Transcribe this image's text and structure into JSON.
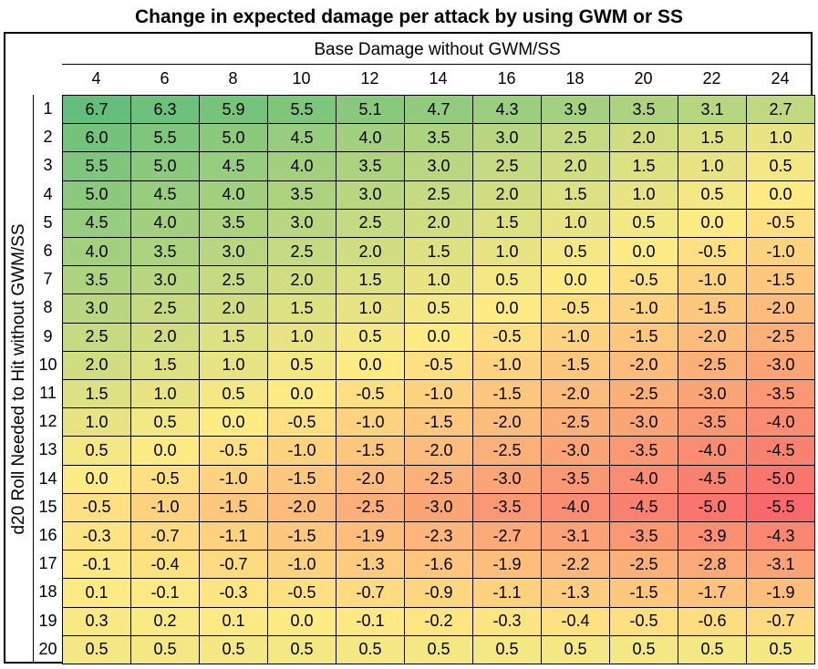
{
  "chart_data": {
    "type": "heatmap",
    "title": "Change in expected damage per attack by using GWM or SS",
    "xlabel": "Base Damage without GWM/SS",
    "ylabel": "d20 Roll Needed to Hit without GWM/SS",
    "x": [
      "4",
      "6",
      "8",
      "10",
      "12",
      "14",
      "16",
      "18",
      "20",
      "22",
      "24"
    ],
    "y": [
      "1",
      "2",
      "3",
      "4",
      "5",
      "6",
      "7",
      "8",
      "9",
      "10",
      "11",
      "12",
      "13",
      "14",
      "15",
      "16",
      "17",
      "18",
      "19",
      "20"
    ],
    "values": [
      [
        "6.7",
        "6.3",
        "5.9",
        "5.5",
        "5.1",
        "4.7",
        "4.3",
        "3.9",
        "3.5",
        "3.1",
        "2.7"
      ],
      [
        "6.0",
        "5.5",
        "5.0",
        "4.5",
        "4.0",
        "3.5",
        "3.0",
        "2.5",
        "2.0",
        "1.5",
        "1.0"
      ],
      [
        "5.5",
        "5.0",
        "4.5",
        "4.0",
        "3.5",
        "3.0",
        "2.5",
        "2.0",
        "1.5",
        "1.0",
        "0.5"
      ],
      [
        "5.0",
        "4.5",
        "4.0",
        "3.5",
        "3.0",
        "2.5",
        "2.0",
        "1.5",
        "1.0",
        "0.5",
        "0.0"
      ],
      [
        "4.5",
        "4.0",
        "3.5",
        "3.0",
        "2.5",
        "2.0",
        "1.5",
        "1.0",
        "0.5",
        "0.0",
        "-0.5"
      ],
      [
        "4.0",
        "3.5",
        "3.0",
        "2.5",
        "2.0",
        "1.5",
        "1.0",
        "0.5",
        "0.0",
        "-0.5",
        "-1.0"
      ],
      [
        "3.5",
        "3.0",
        "2.5",
        "2.0",
        "1.5",
        "1.0",
        "0.5",
        "0.0",
        "-0.5",
        "-1.0",
        "-1.5"
      ],
      [
        "3.0",
        "2.5",
        "2.0",
        "1.5",
        "1.0",
        "0.5",
        "0.0",
        "-0.5",
        "-1.0",
        "-1.5",
        "-2.0"
      ],
      [
        "2.5",
        "2.0",
        "1.5",
        "1.0",
        "0.5",
        "0.0",
        "-0.5",
        "-1.0",
        "-1.5",
        "-2.0",
        "-2.5"
      ],
      [
        "2.0",
        "1.5",
        "1.0",
        "0.5",
        "0.0",
        "-0.5",
        "-1.0",
        "-1.5",
        "-2.0",
        "-2.5",
        "-3.0"
      ],
      [
        "1.5",
        "1.0",
        "0.5",
        "0.0",
        "-0.5",
        "-1.0",
        "-1.5",
        "-2.0",
        "-2.5",
        "-3.0",
        "-3.5"
      ],
      [
        "1.0",
        "0.5",
        "0.0",
        "-0.5",
        "-1.0",
        "-1.5",
        "-2.0",
        "-2.5",
        "-3.0",
        "-3.5",
        "-4.0"
      ],
      [
        "0.5",
        "0.0",
        "-0.5",
        "-1.0",
        "-1.5",
        "-2.0",
        "-2.5",
        "-3.0",
        "-3.5",
        "-4.0",
        "-4.5"
      ],
      [
        "0.0",
        "-0.5",
        "-1.0",
        "-1.5",
        "-2.0",
        "-2.5",
        "-3.0",
        "-3.5",
        "-4.0",
        "-4.5",
        "-5.0"
      ],
      [
        "-0.5",
        "-1.0",
        "-1.5",
        "-2.0",
        "-2.5",
        "-3.0",
        "-3.5",
        "-4.0",
        "-4.5",
        "-5.0",
        "-5.5"
      ],
      [
        "-0.3",
        "-0.7",
        "-1.1",
        "-1.5",
        "-1.9",
        "-2.3",
        "-2.7",
        "-3.1",
        "-3.5",
        "-3.9",
        "-4.3"
      ],
      [
        "-0.1",
        "-0.4",
        "-0.7",
        "-1.0",
        "-1.3",
        "-1.6",
        "-1.9",
        "-2.2",
        "-2.5",
        "-2.8",
        "-3.1"
      ],
      [
        "0.1",
        "-0.1",
        "-0.3",
        "-0.5",
        "-0.7",
        "-0.9",
        "-1.1",
        "-1.3",
        "-1.5",
        "-1.7",
        "-1.9"
      ],
      [
        "0.3",
        "0.2",
        "0.1",
        "0.0",
        "-0.1",
        "-0.2",
        "-0.3",
        "-0.4",
        "-0.5",
        "-0.6",
        "-0.7"
      ],
      [
        "0.5",
        "0.5",
        "0.5",
        "0.5",
        "0.5",
        "0.5",
        "0.5",
        "0.5",
        "0.5",
        "0.5",
        "0.5"
      ]
    ],
    "color_scale": {
      "min": -5.5,
      "mid": 0.0,
      "max": 6.7,
      "min_color": "#f8696b",
      "mid_color": "#ffeb84",
      "max_color": "#63be7b"
    },
    "grid": true
  }
}
